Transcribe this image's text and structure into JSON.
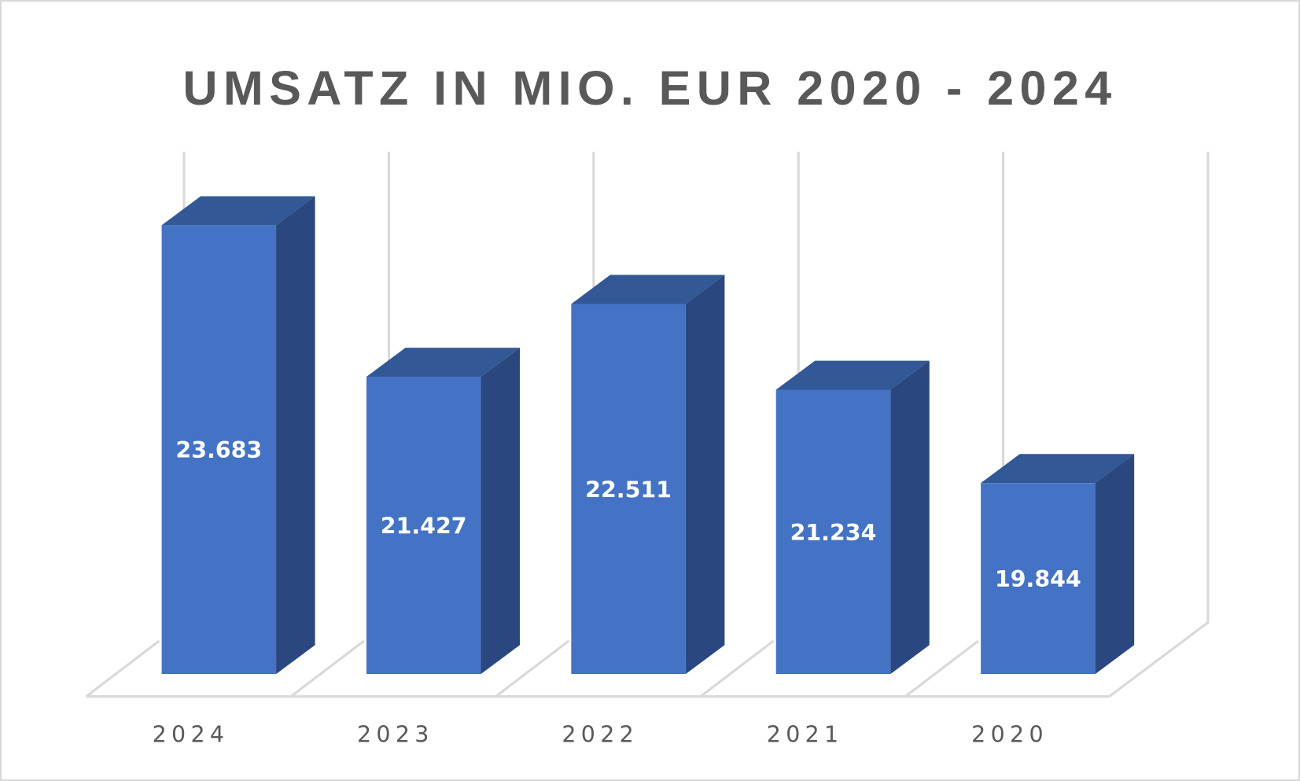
{
  "chart_data": {
    "type": "bar",
    "subtype": "3d-column",
    "title": "UMSATZ IN MIO. EUR 2020 - 2024",
    "categories": [
      "2024",
      "2023",
      "2022",
      "2021",
      "2020"
    ],
    "values": [
      23.683,
      21.427,
      22.511,
      21.234,
      19.844
    ],
    "data_labels": [
      "23.683",
      "21.427",
      "22.511",
      "21.234",
      "19.844"
    ],
    "xlabel": "",
    "ylabel": "",
    "ylim": [
      17,
      25
    ],
    "value_axis_visible": false,
    "grid": true,
    "legend": "none",
    "colors": {
      "front": "#4472C4",
      "top": "#335896",
      "side": "#2A4780",
      "grid": "#D9D9D9",
      "text": "#595959"
    }
  }
}
